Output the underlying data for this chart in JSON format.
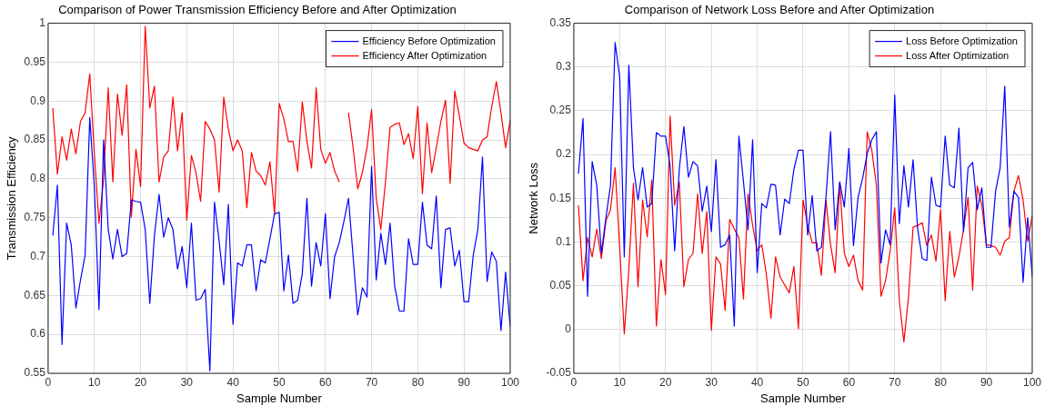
{
  "chart_data": [
    {
      "type": "line",
      "title": "Comparison of Power Transmission Efficiency Before and After Optimization",
      "xlabel": "Sample Number",
      "ylabel": "Transmission Efficiency",
      "x": [
        1,
        2,
        3,
        4,
        5,
        6,
        7,
        8,
        9,
        10,
        11,
        12,
        13,
        14,
        15,
        16,
        17,
        18,
        19,
        20,
        21,
        22,
        23,
        24,
        25,
        26,
        27,
        28,
        29,
        30,
        31,
        32,
        33,
        34,
        35,
        36,
        37,
        38,
        39,
        40,
        41,
        42,
        43,
        44,
        45,
        46,
        47,
        48,
        49,
        50,
        51,
        52,
        53,
        54,
        55,
        56,
        57,
        58,
        59,
        60,
        61,
        62,
        63,
        64,
        65,
        66,
        67,
        68,
        69,
        70,
        71,
        72,
        73,
        74,
        75,
        76,
        77,
        78,
        79,
        80,
        81,
        82,
        83,
        84,
        85,
        86,
        87,
        88,
        89,
        90,
        91,
        92,
        93,
        94,
        95,
        96,
        97,
        98,
        99,
        100
      ],
      "series": [
        {
          "name": "Efficiency Before Optimization",
          "color": "#0000ff",
          "values": [
            0.727,
            0.792,
            0.587,
            0.743,
            0.715,
            0.634,
            0.67,
            0.702,
            0.879,
            0.79,
            0.632,
            0.85,
            0.735,
            0.697,
            0.735,
            0.7,
            0.704,
            0.773,
            0.771,
            0.77,
            0.735,
            0.64,
            0.727,
            0.78,
            0.725,
            0.75,
            0.735,
            0.684,
            0.713,
            0.66,
            0.743,
            0.644,
            0.646,
            0.658,
            0.553,
            0.77,
            0.72,
            0.664,
            0.767,
            0.613,
            0.692,
            0.688,
            0.715,
            0.715,
            0.656,
            0.696,
            0.692,
            0.723,
            0.755,
            0.757,
            0.656,
            0.702,
            0.64,
            0.644,
            0.678,
            0.775,
            0.662,
            0.718,
            0.688,
            0.755,
            0.646,
            0.7,
            0.718,
            0.745,
            0.775,
            0.7,
            0.625,
            0.66,
            0.648,
            0.816,
            0.67,
            0.73,
            0.69,
            0.743,
            0.662,
            0.63,
            0.63,
            0.723,
            0.69,
            0.69,
            0.77,
            0.715,
            0.71,
            0.778,
            0.66,
            0.735,
            0.737,
            0.688,
            0.708,
            0.642,
            0.642,
            0.702,
            0.735,
            0.828,
            0.668,
            0.706,
            0.694,
            0.605,
            0.68,
            0.61
          ]
        },
        {
          "name": "Efficiency After Optimization",
          "color": "#ff0000",
          "values": [
            0.891,
            0.806,
            0.854,
            0.824,
            0.864,
            0.832,
            0.874,
            0.885,
            0.935,
            0.832,
            0.743,
            0.8,
            0.917,
            0.796,
            0.909,
            0.856,
            0.921,
            0.751,
            0.838,
            0.79,
            0.996,
            0.891,
            0.919,
            0.796,
            0.828,
            0.836,
            0.905,
            0.836,
            0.885,
            0.747,
            0.83,
            0.808,
            0.771,
            0.874,
            0.864,
            0.85,
            0.783,
            0.905,
            0.864,
            0.836,
            0.85,
            0.836,
            0.763,
            0.834,
            0.81,
            0.804,
            0.792,
            0.822,
            0.755,
            0.897,
            0.877,
            0.848,
            0.848,
            0.81,
            0.899,
            0.848,
            0.814,
            0.917,
            0.838,
            0.82,
            0.834,
            0.81,
            0.796,
            null,
            0.885,
            0.84,
            0.787,
            0.808,
            0.84,
            0.889,
            0.775,
            0.735,
            0.796,
            0.866,
            0.87,
            0.872,
            0.844,
            0.858,
            0.826,
            0.893,
            0.781,
            0.872,
            0.808,
            0.84,
            0.874,
            0.901,
            0.794,
            0.913,
            0.881,
            0.846,
            0.84,
            0.838,
            0.836,
            0.85,
            0.854,
            0.893,
            0.925,
            0.885,
            0.84,
            0.875
          ]
        }
      ],
      "xlim": [
        0,
        100
      ],
      "xticks": [
        0,
        10,
        20,
        30,
        40,
        50,
        60,
        70,
        80,
        90,
        100
      ],
      "ylim": [
        0.55,
        1
      ],
      "yticks": [
        0.55,
        0.6,
        0.65,
        0.7,
        0.75,
        0.8,
        0.85,
        0.9,
        0.95,
        1
      ],
      "grid": true,
      "legend": "top right",
      "marker": "none"
    },
    {
      "type": "line",
      "title": "Comparison of Network Loss Before and After Optimization",
      "xlabel": "Sample Number",
      "ylabel": "Network Loss",
      "x": [
        1,
        2,
        3,
        4,
        5,
        6,
        7,
        8,
        9,
        10,
        11,
        12,
        13,
        14,
        15,
        16,
        17,
        18,
        19,
        20,
        21,
        22,
        23,
        24,
        25,
        26,
        27,
        28,
        29,
        30,
        31,
        32,
        33,
        34,
        35,
        36,
        37,
        38,
        39,
        40,
        41,
        42,
        43,
        44,
        45,
        46,
        47,
        48,
        49,
        50,
        51,
        52,
        53,
        54,
        55,
        56,
        57,
        58,
        59,
        60,
        61,
        62,
        63,
        64,
        65,
        66,
        67,
        68,
        69,
        70,
        71,
        72,
        73,
        74,
        75,
        76,
        77,
        78,
        79,
        80,
        81,
        82,
        83,
        84,
        85,
        86,
        87,
        88,
        89,
        90,
        91,
        92,
        93,
        94,
        95,
        96,
        97,
        98,
        99,
        100
      ],
      "series": [
        {
          "name": "Loss Before Optimization",
          "color": "#0000ff",
          "values": [
            0.178,
            0.241,
            0.038,
            0.192,
            0.165,
            0.087,
            0.128,
            0.165,
            0.328,
            0.289,
            0.083,
            0.302,
            0.185,
            0.148,
            0.185,
            0.14,
            0.144,
            0.225,
            0.221,
            0.221,
            0.187,
            0.09,
            0.183,
            0.232,
            0.174,
            0.192,
            0.187,
            0.135,
            0.164,
            0.112,
            0.194,
            0.094,
            0.097,
            0.108,
            0.004,
            0.221,
            0.169,
            0.114,
            0.217,
            0.065,
            0.144,
            0.139,
            0.166,
            0.165,
            0.108,
            0.149,
            0.144,
            0.183,
            0.205,
            0.205,
            0.108,
            0.153,
            0.09,
            0.094,
            0.151,
            0.226,
            0.114,
            0.169,
            0.14,
            0.207,
            0.096,
            0.151,
            0.173,
            0.201,
            0.217,
            0.226,
            0.076,
            0.114,
            0.097,
            0.268,
            0.121,
            0.187,
            0.14,
            0.194,
            0.115,
            0.081,
            0.079,
            0.174,
            0.142,
            0.14,
            0.221,
            0.165,
            0.162,
            0.23,
            0.112,
            0.185,
            0.191,
            0.137,
            0.162,
            0.094,
            0.094,
            0.158,
            0.185,
            0.278,
            0.117,
            0.158,
            0.151,
            0.054,
            0.128,
            0.06
          ]
        },
        {
          "name": "Loss After Optimization",
          "color": "#ff0000",
          "values": [
            0.142,
            0.056,
            0.105,
            0.083,
            0.115,
            0.081,
            0.124,
            0.137,
            0.185,
            0.094,
            -0.005,
            0.069,
            0.167,
            0.049,
            0.148,
            0.106,
            0.171,
            0.004,
            0.08,
            0.04,
            0.244,
            0.142,
            0.169,
            0.049,
            0.08,
            0.087,
            0.155,
            0.087,
            0.135,
            -0.001,
            0.083,
            0.075,
            0.022,
            0.126,
            0.115,
            0.105,
            0.035,
            0.155,
            0.119,
            0.09,
            0.097,
            0.063,
            0.013,
            0.083,
            0.06,
            0.051,
            0.042,
            0.072,
            0.001,
            0.148,
            0.119,
            0.099,
            0.099,
            0.062,
            0.148,
            0.097,
            0.065,
            0.167,
            0.087,
            0.072,
            0.085,
            0.056,
            0.045,
            0.226,
            0.205,
            0.165,
            0.038,
            0.056,
            0.09,
            0.139,
            0.033,
            -0.014,
            0.037,
            0.117,
            0.119,
            0.122,
            0.096,
            0.108,
            0.078,
            0.137,
            0.033,
            0.112,
            0.06,
            0.083,
            0.114,
            0.151,
            0.045,
            0.164,
            0.142,
            0.097,
            0.096,
            0.094,
            0.085,
            0.101,
            0.105,
            0.158,
            0.176,
            0.148,
            0.101,
            0.13
          ]
        }
      ],
      "xlim": [
        0,
        100
      ],
      "xticks": [
        0,
        10,
        20,
        30,
        40,
        50,
        60,
        70,
        80,
        90,
        100
      ],
      "ylim": [
        -0.05,
        0.35
      ],
      "yticks": [
        -0.05,
        0,
        0.05,
        0.1,
        0.15,
        0.2,
        0.25,
        0.3,
        0.35
      ],
      "grid": true,
      "legend": "top right",
      "marker": "none"
    }
  ]
}
